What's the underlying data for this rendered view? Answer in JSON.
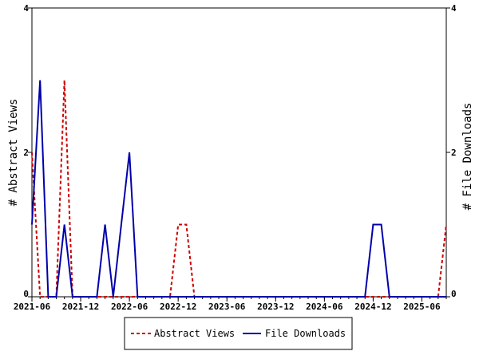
{
  "chart_data": {
    "type": "line",
    "x_start": "2021-06",
    "x_end": "2025-09",
    "xticks": [
      "2021-06",
      "2021-12",
      "2022-06",
      "2022-12",
      "2023-06",
      "2023-12",
      "2024-06",
      "2024-12",
      "2025-06"
    ],
    "ylabel_left": "# Abstract Views",
    "ylabel_right": "# File Downloads",
    "ylim_left": [
      0,
      4
    ],
    "ylim_right": [
      0,
      4
    ],
    "yticks_left": [
      "0",
      "2",
      "4"
    ],
    "yticks_right": [
      "0",
      "2",
      "4"
    ],
    "legend_position": "bottom-center",
    "grid": false,
    "series": [
      {
        "name": "Abstract Views",
        "color": "#cc0000",
        "style": "dashed",
        "axis": "left",
        "x": [
          "2021-06",
          "2021-07",
          "2021-08",
          "2021-09",
          "2021-10",
          "2021-11",
          "2021-12",
          "2022-01",
          "2022-02",
          "2022-03",
          "2022-04",
          "2022-05",
          "2022-06",
          "2022-07",
          "2022-08",
          "2022-09",
          "2022-10",
          "2022-11",
          "2022-12",
          "2023-01",
          "2023-02",
          "2023-03",
          "2023-04",
          "2023-05",
          "2023-06",
          "2023-07",
          "2023-08",
          "2023-09",
          "2023-10",
          "2023-11",
          "2023-12",
          "2024-01",
          "2024-02",
          "2024-03",
          "2024-04",
          "2024-05",
          "2024-06",
          "2024-07",
          "2024-08",
          "2024-09",
          "2024-10",
          "2024-11",
          "2024-12",
          "2025-01",
          "2025-02",
          "2025-03",
          "2025-04",
          "2025-05",
          "2025-06",
          "2025-07",
          "2025-08",
          "2025-09"
        ],
        "values": [
          2,
          0,
          0,
          0,
          3,
          0,
          0,
          0,
          0,
          0,
          0,
          0,
          0,
          0,
          0,
          0,
          0,
          0,
          1,
          1,
          0,
          0,
          0,
          0,
          0,
          0,
          0,
          0,
          0,
          0,
          0,
          0,
          0,
          0,
          0,
          0,
          0,
          0,
          0,
          0,
          0,
          0,
          0,
          0,
          0,
          0,
          0,
          0,
          0,
          0,
          0,
          1
        ]
      },
      {
        "name": "File Downloads",
        "color": "#0000aa",
        "style": "solid",
        "axis": "right",
        "x": [
          "2021-06",
          "2021-07",
          "2021-08",
          "2021-09",
          "2021-10",
          "2021-11",
          "2021-12",
          "2022-01",
          "2022-02",
          "2022-03",
          "2022-04",
          "2022-05",
          "2022-06",
          "2022-07",
          "2022-08",
          "2022-09",
          "2022-10",
          "2022-11",
          "2022-12",
          "2023-01",
          "2023-02",
          "2023-03",
          "2023-04",
          "2023-05",
          "2023-06",
          "2023-07",
          "2023-08",
          "2023-09",
          "2023-10",
          "2023-11",
          "2023-12",
          "2024-01",
          "2024-02",
          "2024-03",
          "2024-04",
          "2024-05",
          "2024-06",
          "2024-07",
          "2024-08",
          "2024-09",
          "2024-10",
          "2024-11",
          "2024-12",
          "2025-01",
          "2025-02",
          "2025-03",
          "2025-04",
          "2025-05",
          "2025-06",
          "2025-07",
          "2025-08",
          "2025-09"
        ],
        "values": [
          1,
          3,
          0,
          0,
          1,
          0,
          0,
          0,
          0,
          1,
          0,
          1,
          2,
          0,
          0,
          0,
          0,
          0,
          0,
          0,
          0,
          0,
          0,
          0,
          0,
          0,
          0,
          0,
          0,
          0,
          0,
          0,
          0,
          0,
          0,
          0,
          0,
          0,
          0,
          0,
          0,
          0,
          1,
          1,
          0,
          0,
          0,
          0,
          0,
          0,
          0,
          0
        ]
      }
    ]
  }
}
